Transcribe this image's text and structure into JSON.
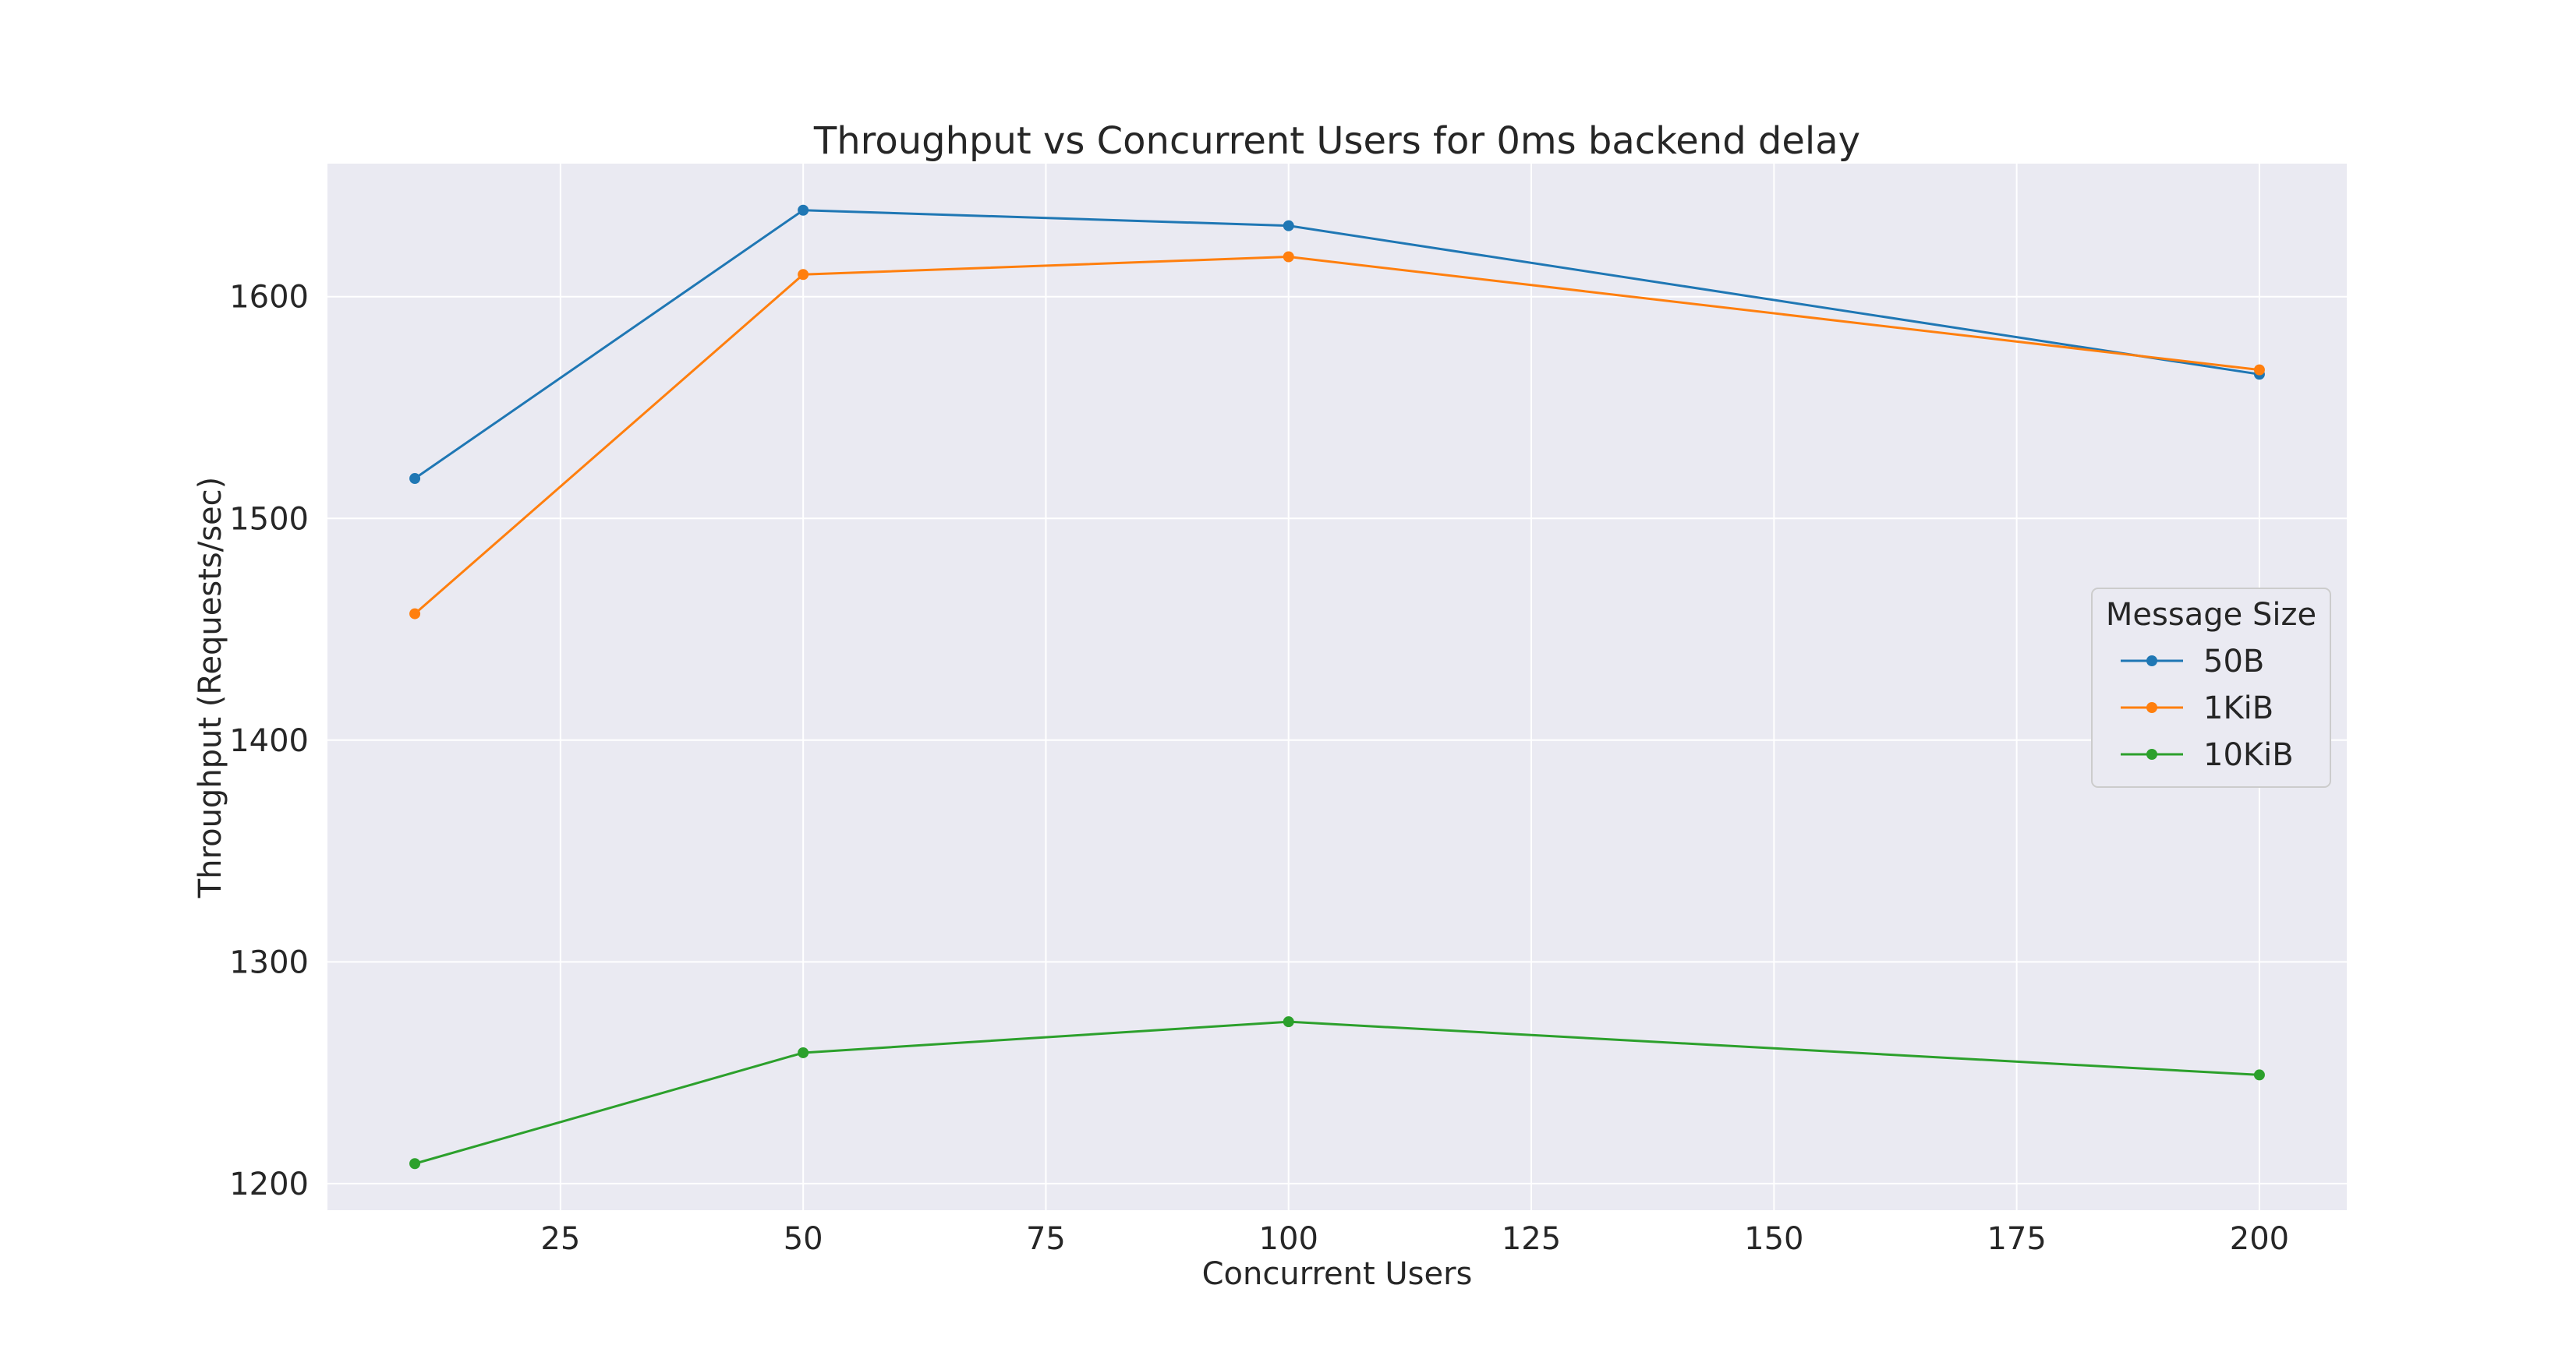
{
  "chart_data": {
    "type": "line",
    "title": "Throughput vs Concurrent Users for 0ms backend delay",
    "xlabel": "Concurrent Users",
    "ylabel": "Throughput (Requests/sec)",
    "xlim": [
      1,
      209
    ],
    "ylim": [
      1188,
      1660
    ],
    "xticks": [
      25,
      50,
      75,
      100,
      125,
      150,
      175,
      200
    ],
    "yticks": [
      1200,
      1300,
      1400,
      1500,
      1600
    ],
    "grid": true,
    "legend": {
      "title": "Message Size",
      "placement": "center-right"
    },
    "x": [
      10,
      50,
      100,
      200
    ],
    "series": [
      {
        "name": "50B",
        "color": "#1f77b4",
        "values": [
          1518,
          1639,
          1632,
          1565
        ]
      },
      {
        "name": "1KiB",
        "color": "#ff7f0e",
        "values": [
          1457,
          1610,
          1618,
          1567
        ]
      },
      {
        "name": "10KiB",
        "color": "#2ca02c",
        "values": [
          1209,
          1259,
          1273,
          1249
        ]
      }
    ]
  }
}
